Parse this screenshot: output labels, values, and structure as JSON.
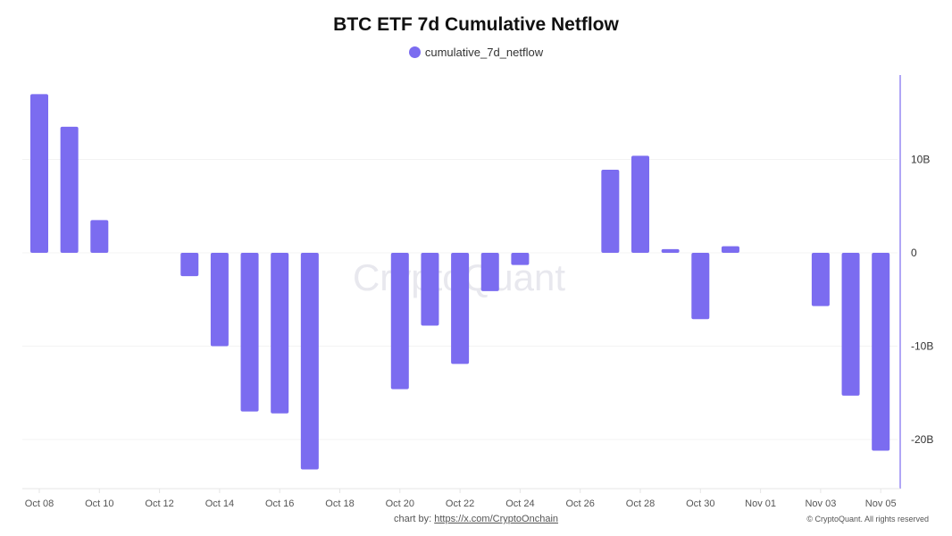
{
  "chart_data": {
    "type": "bar",
    "title": "BTC ETF 7d Cumulative Netflow",
    "legend": [
      {
        "name": "cumulative_7d_netflow",
        "color": "#7B6CF0"
      }
    ],
    "legend_placement": "top-center",
    "x_tick_labels": [
      "Oct 08",
      "Oct 10",
      "Oct 12",
      "Oct 14",
      "Oct 16",
      "Oct 18",
      "Oct 20",
      "Oct 22",
      "Oct 24",
      "Oct 26",
      "Oct 28",
      "Oct 30",
      "Nov 01",
      "Nov 03",
      "Nov 05"
    ],
    "y_tick_labels": [
      "10B",
      "0",
      "-10B",
      "-20B"
    ],
    "y_ticks": [
      10,
      0,
      -10,
      -20
    ],
    "ylim": [
      -25,
      19
    ],
    "y_unit": "B",
    "y_axis_side": "right",
    "series": [
      {
        "name": "cumulative_7d_netflow",
        "color": "#7B6CF0",
        "points": [
          {
            "date": "Oct 08",
            "value": 17.0
          },
          {
            "date": "Oct 09",
            "value": 13.5
          },
          {
            "date": "Oct 10",
            "value": 3.5
          },
          {
            "date": "Oct 13",
            "value": -2.5
          },
          {
            "date": "Oct 14",
            "value": -10.0
          },
          {
            "date": "Oct 15",
            "value": -17.0
          },
          {
            "date": "Oct 16",
            "value": -17.2
          },
          {
            "date": "Oct 17",
            "value": -23.2
          },
          {
            "date": "Oct 20",
            "value": -14.6
          },
          {
            "date": "Oct 21",
            "value": -7.8
          },
          {
            "date": "Oct 22",
            "value": -11.9
          },
          {
            "date": "Oct 23",
            "value": -4.1
          },
          {
            "date": "Oct 24",
            "value": -1.3
          },
          {
            "date": "Oct 27",
            "value": 8.9
          },
          {
            "date": "Oct 28",
            "value": 10.4
          },
          {
            "date": "Oct 29",
            "value": 0.4
          },
          {
            "date": "Oct 30",
            "value": -7.1
          },
          {
            "date": "Oct 31",
            "value": 0.7
          },
          {
            "date": "Nov 03",
            "value": -5.7
          },
          {
            "date": "Nov 04",
            "value": -15.3
          },
          {
            "date": "Nov 05",
            "value": -21.2
          }
        ]
      }
    ],
    "grid": true
  },
  "watermark": "CryptoQuant",
  "footer": {
    "chart_by_label": "chart by:",
    "chart_by_link": "https://x.com/CryptoOnchain",
    "copyright": "© CryptoQuant. All rights reserved"
  }
}
